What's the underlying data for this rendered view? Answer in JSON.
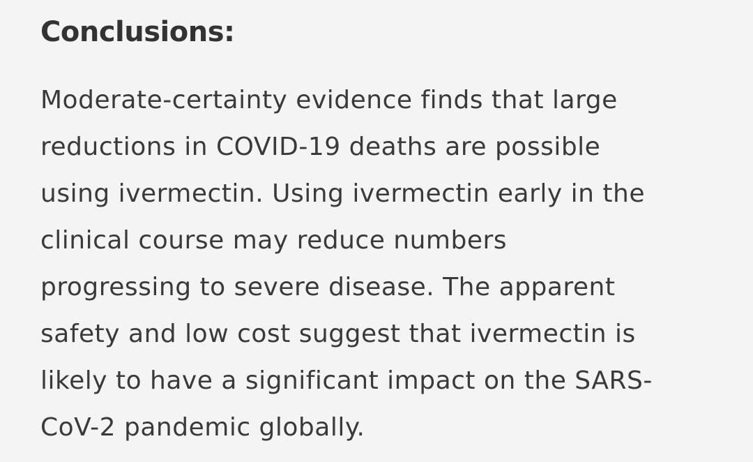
{
  "section": {
    "heading": "Conclusions:",
    "lines": [
      "Moderate-certainty evidence finds that large",
      "reductions in COVID-19 deaths are possible",
      "using ivermectin. Using ivermectin early in the",
      "clinical course may reduce numbers",
      "progressing to severe disease. The apparent",
      "safety and low cost suggest that ivermectin is",
      "likely to have a significant impact on the SARS-",
      "CoV-2 pandemic globally."
    ]
  }
}
